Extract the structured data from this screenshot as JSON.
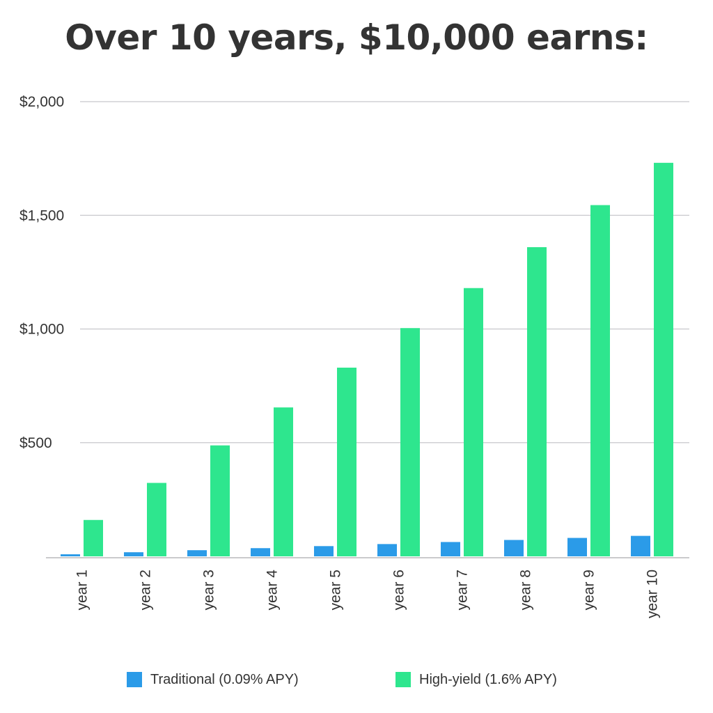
{
  "chart_data": {
    "type": "bar",
    "title": "Over 10 years, $10,000 earns:",
    "categories": [
      "year 1",
      "year 2",
      "year 3",
      "year 4",
      "year 5",
      "year 6",
      "year 7",
      "year 8",
      "year 9",
      "year 10"
    ],
    "series": [
      {
        "name": "Traditional (0.09% APY)",
        "color": "#2b9be8",
        "values": [
          9,
          18,
          27,
          36,
          45,
          54,
          63,
          72,
          81,
          90
        ]
      },
      {
        "name": "High-yield (1.6% APY)",
        "color": "#2ee68e",
        "values": [
          160,
          323,
          488,
          655,
          830,
          1004,
          1180,
          1360,
          1545,
          1731
        ]
      }
    ],
    "ylim": [
      0,
      2000
    ],
    "yticks": [
      500,
      1000,
      1500,
      2000
    ],
    "ytick_labels": [
      "$500",
      "$1,000",
      "$1,500",
      "$2,000"
    ],
    "grid": true,
    "legend_position": "bottom"
  }
}
